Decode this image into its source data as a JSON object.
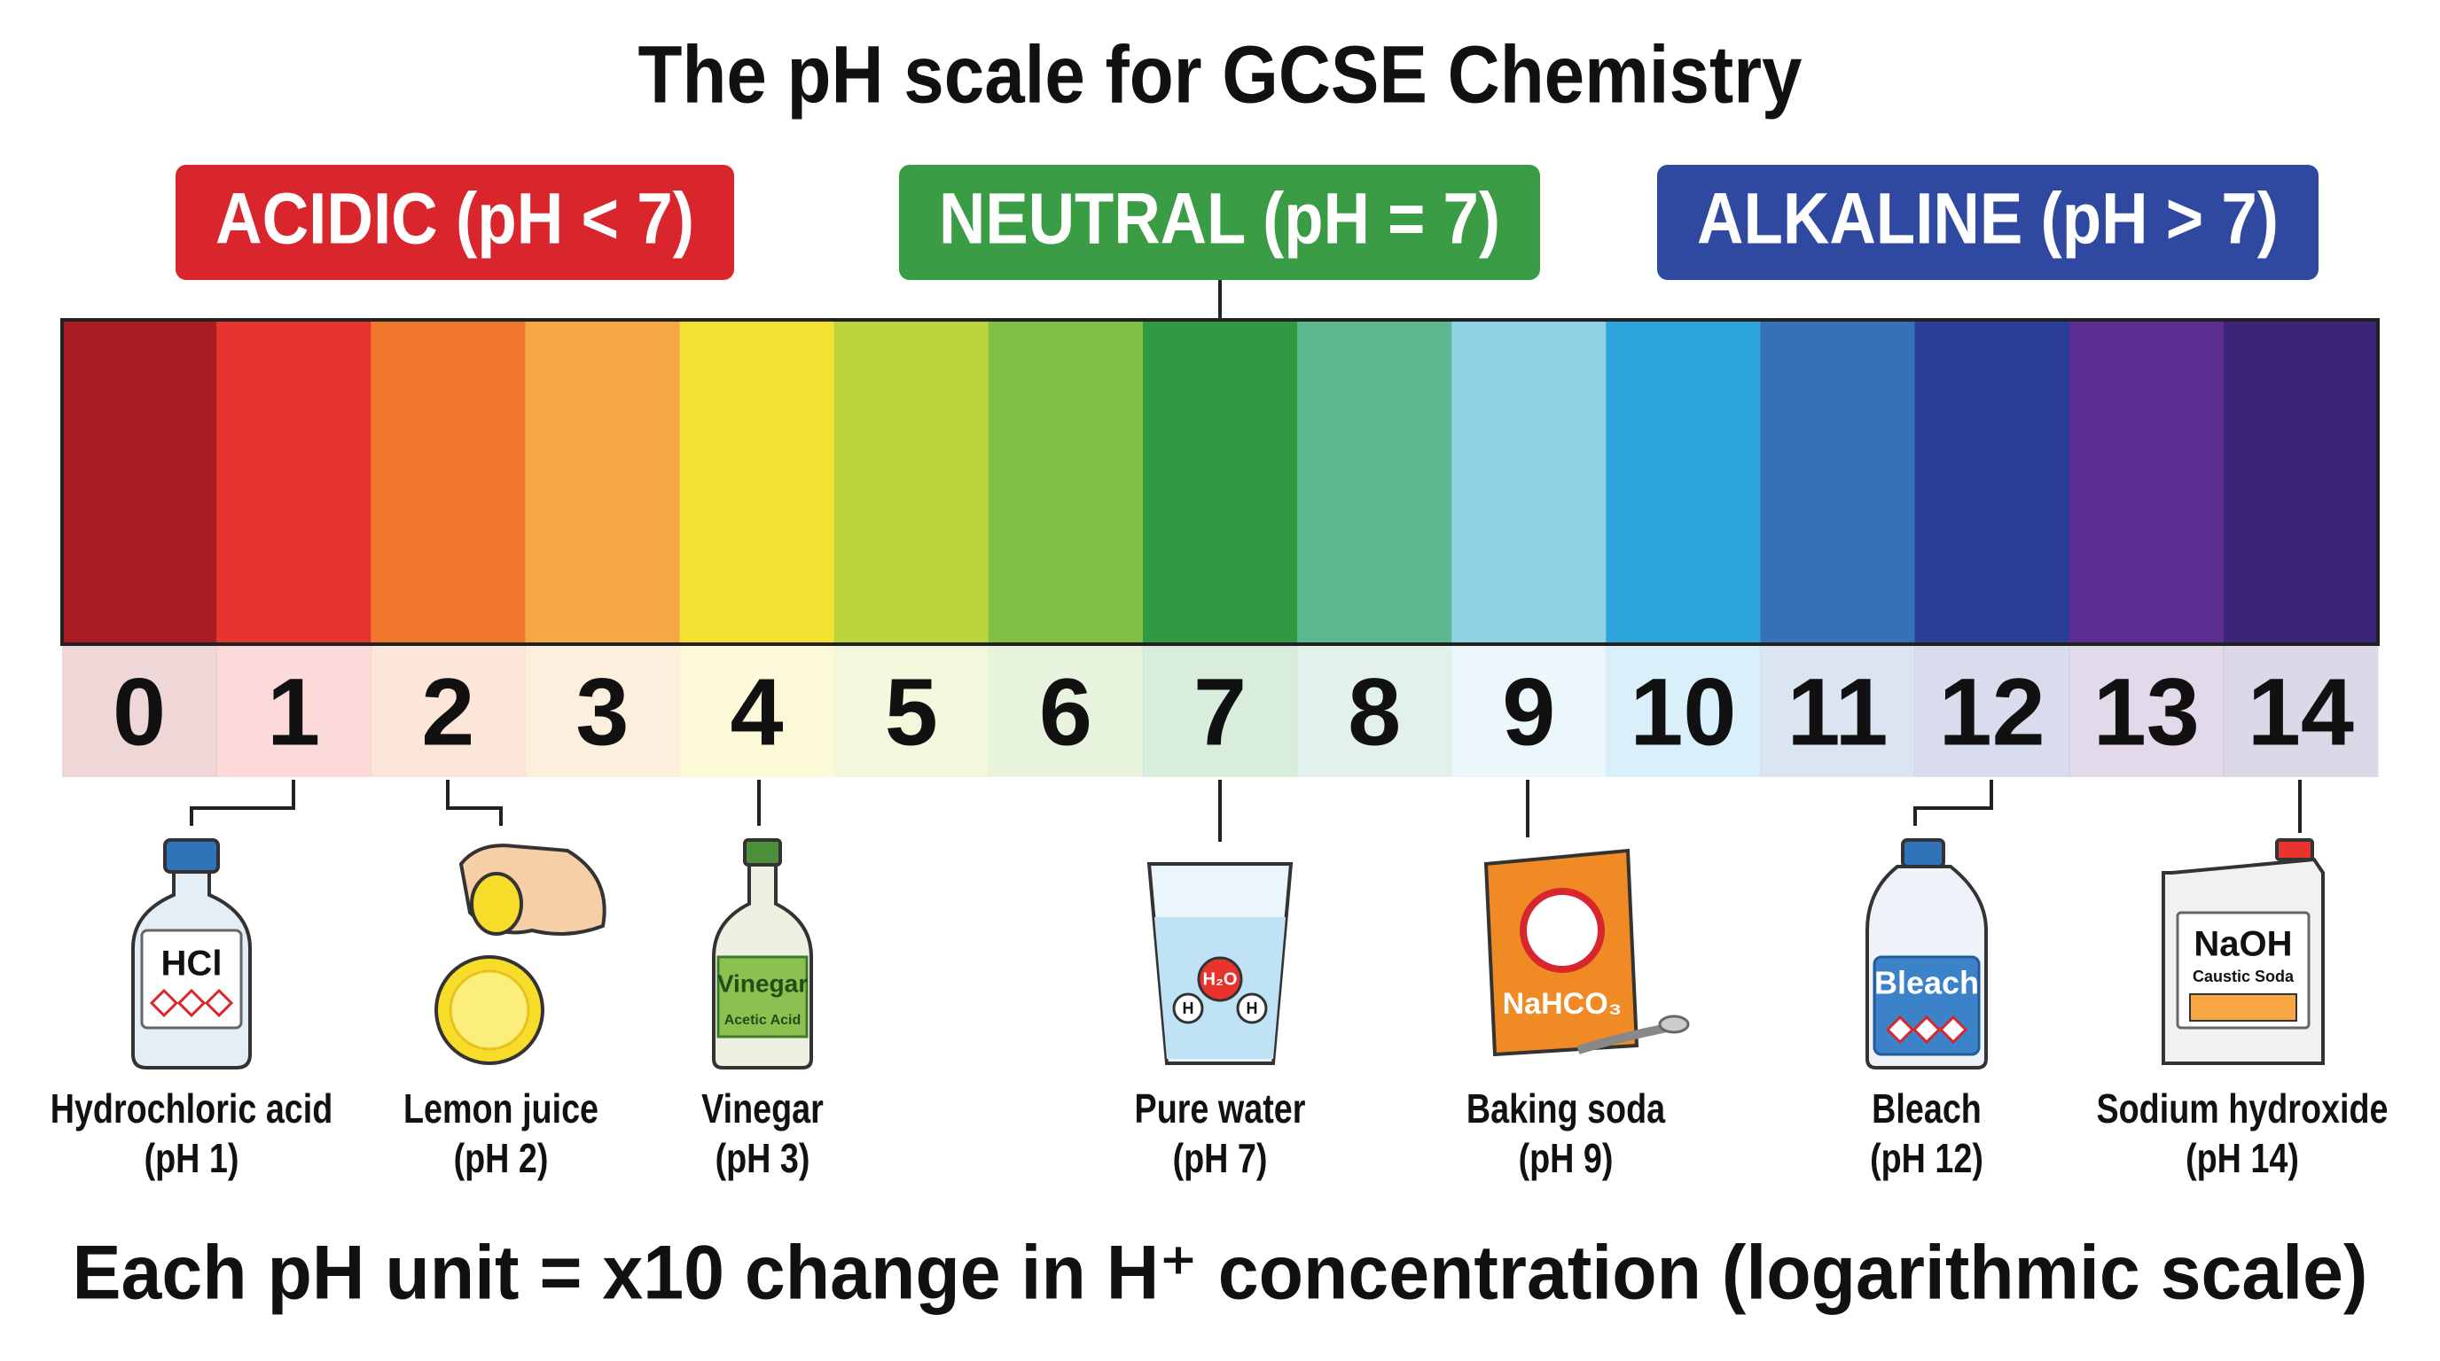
{
  "title": "The pH scale for GCSE Chemistry",
  "regions": [
    {
      "label": "ACIDIC (pH < 7)",
      "color": "#d9262c"
    },
    {
      "label": "NEUTRAL (pH = 7)",
      "color": "#3a9c44"
    },
    {
      "label": "ALKALINE (pH > 7)",
      "color": "#2f49a0"
    }
  ],
  "scale": {
    "levels": [
      0,
      1,
      2,
      3,
      4,
      5,
      6,
      7,
      8,
      9,
      10,
      11,
      12,
      13,
      14
    ],
    "colors": [
      "#a91e22",
      "#e8342e",
      "#f1772d",
      "#f6a643",
      "#f3e131",
      "#bcd43b",
      "#80bf45",
      "#2f9a42",
      "#5cb890",
      "#8fd1e2",
      "#2fa6db",
      "#3570b8",
      "#2b3e96",
      "#5c2d91",
      "#3b2578"
    ]
  },
  "examples": [
    {
      "name": "Hydrochloric acid",
      "ph": "(pH 1)",
      "icon_text": [
        "HCl"
      ]
    },
    {
      "name": "Lemon juice",
      "ph": "(pH 2)",
      "icon_text": []
    },
    {
      "name": "Vinegar",
      "ph": "(pH 3)",
      "icon_text": [
        "Vinegar",
        "Acetic Acid"
      ]
    },
    {
      "name": "Pure water",
      "ph": "(pH 7)",
      "icon_text": [
        "H₂O",
        "H",
        "H"
      ]
    },
    {
      "name": "Baking soda",
      "ph": "(pH 9)",
      "icon_text": [
        "NaHCO₃"
      ]
    },
    {
      "name": "Bleach",
      "ph": "(pH 12)",
      "icon_text": [
        "Bleach"
      ]
    },
    {
      "name": "Sodium hydroxide",
      "ph": "(pH 14)",
      "icon_text": [
        "NaOH",
        "Caustic Soda"
      ]
    }
  ],
  "footnote": "Each pH unit = x10 change in H⁺ concentration (logarithmic scale)"
}
